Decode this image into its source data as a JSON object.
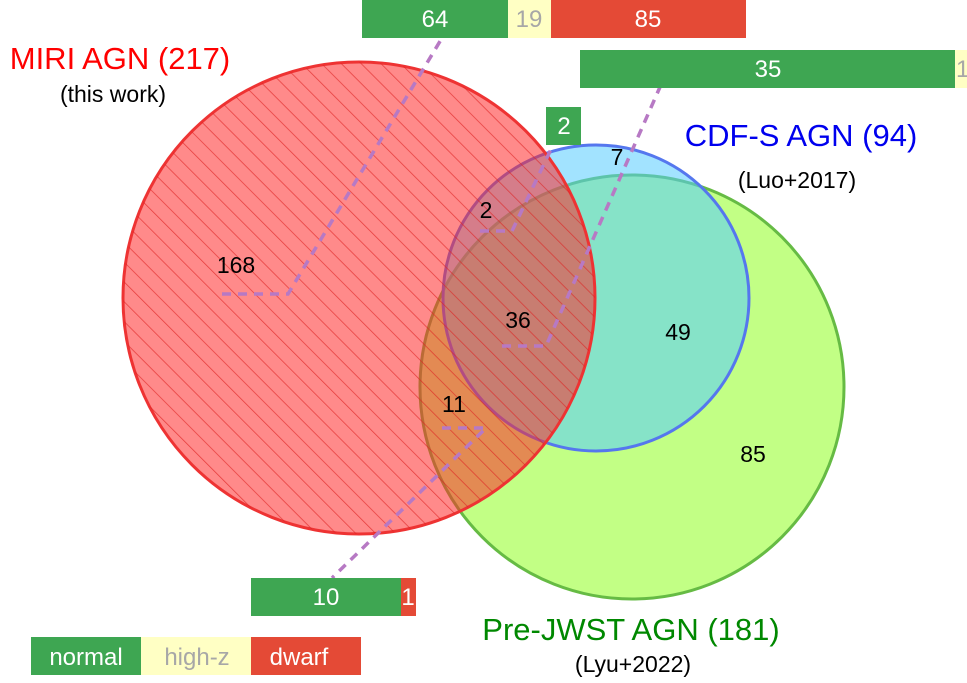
{
  "sets": {
    "miri": {
      "title": "MIRI AGN (217)",
      "subtitle": "(this work)",
      "fill": "#ff2a2a",
      "stroke": "#ee3333",
      "title_color": "#ff0000"
    },
    "cdfs": {
      "title": "CDF-S AGN (94)",
      "subtitle": "(Luo+2017)",
      "fill": "#55ccff",
      "stroke": "#5577ee",
      "title_color": "#0000ee"
    },
    "prejwst": {
      "title": "Pre-JWST AGN (181)",
      "subtitle": "(Lyu+2022)",
      "fill": "#99ff33",
      "stroke": "#66bb44",
      "title_color": "#008800"
    }
  },
  "regions": {
    "miri_only": "168",
    "miri_cdfs": "2",
    "cdfs_only": "7",
    "all_three": "36",
    "cdfs_prejwst": "49",
    "miri_prejwst": "11",
    "prejwst_only": "85"
  },
  "breakdown_bars": {
    "miri_only": {
      "normal": "64",
      "high_z": "19",
      "dwarf": "85"
    },
    "all_three": {
      "normal": "35",
      "high_z": "1"
    },
    "miri_cdfs": {
      "normal": "2"
    },
    "miri_prejwst": {
      "normal": "10",
      "dwarf": "1"
    }
  },
  "legend": {
    "normal": "normal",
    "high_z": "high-z",
    "dwarf": "dwarf"
  },
  "colors": {
    "normal": "#3ea652",
    "high_z": "#ffffc4",
    "dwarf": "#e44a36",
    "high_z_text": "#a7a7a7",
    "connector": "#b779c4"
  }
}
